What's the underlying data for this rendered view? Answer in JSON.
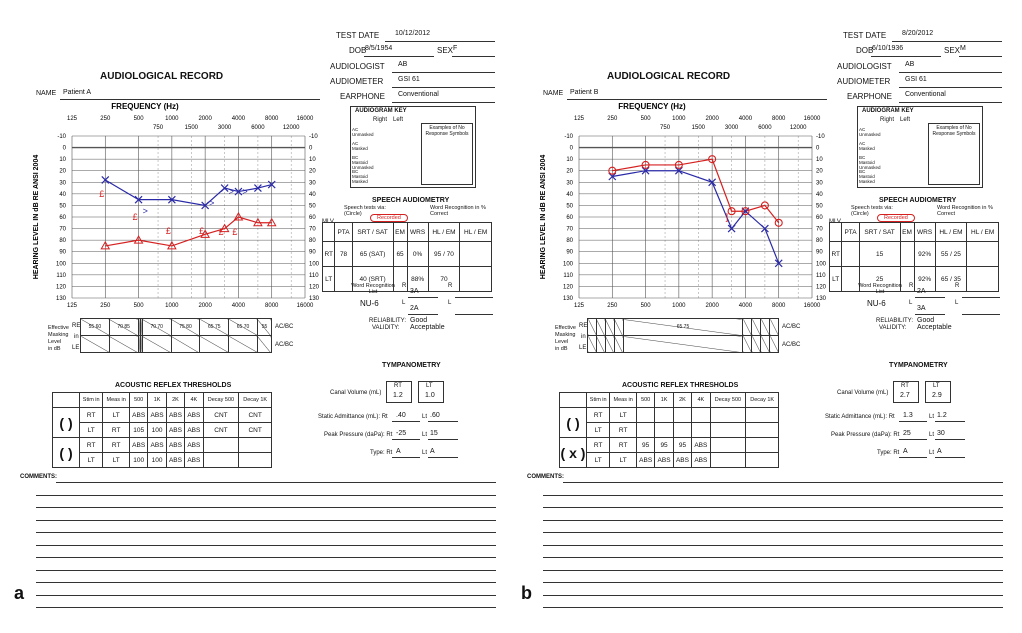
{
  "colors": {
    "right_ear": "#d62020",
    "left_ear": "#2a2aa8",
    "grid": "#555555"
  },
  "common": {
    "title": "AUDIOLOGICAL RECORD",
    "name_label": "NAME",
    "freq_label": "FREQUENCY (Hz)",
    "ylabel": "HEARING LEVEL IN dB RE ANSI 2004",
    "freq_top_main": [
      "125",
      "250",
      "500",
      "1000",
      "2000",
      "4000",
      "8000",
      "16000"
    ],
    "freq_top_inter": [
      "750",
      "1500",
      "3000",
      "6000",
      "12000"
    ],
    "freq_bottom": [
      "125",
      "250",
      "500",
      "1000",
      "2000",
      "4000",
      "8000",
      "16000"
    ],
    "db_ticks": [
      "-10",
      "0",
      "10",
      "20",
      "30",
      "40",
      "50",
      "60",
      "70",
      "80",
      "90",
      "100",
      "110",
      "120",
      "130"
    ],
    "test_date_label": "TEST DATE",
    "dob_label": "DOB",
    "sex_label": "SEX",
    "audiologist_label": "AUDIOLOGIST",
    "audiometer_label": "AUDIOMETER",
    "earphone_label": "EARPHONE",
    "key_title": "AUDIOGRAM KEY",
    "key_right": "Right",
    "key_left": "Left",
    "key_rows": [
      "AC Unmasked",
      "AC Masked",
      "BC Mastoid Unmasked",
      "BC Mastoid Masked"
    ],
    "key_examples": "Examples of No Response Symbols",
    "speech_title": "SPEECH AUDIOMETRY",
    "speech_tests_via": "Speech tests via: (Circle)",
    "recorded": "Recorded",
    "mlv": "MLV",
    "word_rec_pct": "Word Recognition in % Correct",
    "pta": "PTA",
    "srt": "SRT",
    "sat": "SAT",
    "em": "EM",
    "wrs": "WRS",
    "hl": "HL",
    "rt": "RT",
    "lt": "LT",
    "word_rec_list": "Word Recognition List",
    "r": "R",
    "l": "L",
    "reliability_label": "RELIABILITY:",
    "validity_label": "VALIDITY:",
    "masking_lines": [
      "Effective",
      "Masking",
      "Level",
      "in dB"
    ],
    "re": "RE",
    "in": "in",
    "le": "LE",
    "ac_bc": "AC/BC",
    "tymp_title": "TYMPANOMETRY",
    "canal_volume": "Canal Volume (mL)",
    "static_adm": "Static Admittance (mL): Rt",
    "peak_pressure": "Peak Pressure (daPa): Rt",
    "type_label": "Type: Rt",
    "lt_short": "Lt",
    "reflex_title": "ACOUSTIC REFLEX THRESHOLDS",
    "reflex_headers": [
      "Stim in",
      "Meas in",
      "500",
      "1K",
      "2K",
      "4K",
      "Decay 500",
      "Decay 1K"
    ],
    "ipsi": "IPSILATERAL",
    "contra": "CONTRA",
    "comments_label": "COMMENTS:"
  },
  "patients": [
    {
      "panel": "a",
      "name": "Patient A",
      "test_date": "10/12/2012",
      "dob": "8/5/1954",
      "sex": "F",
      "audiologist": "AB",
      "audiometer": "GSI 61",
      "earphone": "Conventional",
      "speech": {
        "pta": "78",
        "rt_srt": "65 (SAT)",
        "rt_em": "65",
        "rt_wrs": "0%",
        "rt_hl": "95",
        "rt_hl2": "70",
        "lt_srt": "40 (SRT)",
        "lt_wrs": "88%",
        "lt_hl": "70",
        "lt_hl2": "",
        "word_list_r": "3A",
        "word_list_l": "2A",
        "nu6": "NU-6"
      },
      "reliability": "Good",
      "validity": "Acceptable",
      "masking_re": [
        "55",
        "70",
        "",
        "",
        "70",
        "75",
        "65",
        "65",
        "55"
      ],
      "masking_re2": [
        "60",
        "85",
        "",
        "",
        "70",
        "80",
        "75",
        "70",
        ""
      ],
      "tymp": {
        "rt_vol": "1.2",
        "lt_vol": "1.0",
        "rt_adm": ".40",
        "lt_adm": ".60",
        "rt_pp": "-25",
        "lt_pp": "15",
        "rt_type": "A",
        "lt_type": "A"
      },
      "reflex_rows": [
        [
          "RT",
          "LT",
          "ABS",
          "ABS",
          "ABS",
          "ABS",
          "CNT",
          "CNT"
        ],
        [
          "LT",
          "RT",
          "105",
          "100",
          "ABS",
          "ABS",
          "CNT",
          "CNT"
        ],
        [
          "RT",
          "RT",
          "ABS",
          "ABS",
          "ABS",
          "ABS",
          "",
          ""
        ],
        [
          "LT",
          "LT",
          "100",
          "100",
          "ABS",
          "ABS",
          "",
          ""
        ]
      ],
      "contra_mark": "",
      "ipsi_mark": "",
      "chart_data": {
        "type": "line",
        "x": [
          250,
          500,
          1000,
          2000,
          3000,
          4000,
          6000,
          8000
        ],
        "series": [
          {
            "values": [
              null,
              null,
              null,
              null,
              null,
              null,
              null,
              null
            ],
            "ac_left": [
              28,
              45,
              45,
              50,
              35,
              38,
              35,
              32
            ]
          },
          {
            "ac_right": [
              85,
              80,
              85,
              75,
              70,
              60,
              65,
              65
            ]
          }
        ],
        "ac_left": [
          [
            250,
            28
          ],
          [
            500,
            45
          ],
          [
            1000,
            45
          ],
          [
            2000,
            50
          ],
          [
            3000,
            35
          ],
          [
            4000,
            38
          ],
          [
            6000,
            35
          ],
          [
            8000,
            32
          ]
        ],
        "ac_right": [
          [
            250,
            85
          ],
          [
            500,
            80
          ],
          [
            1000,
            85
          ],
          [
            2000,
            75
          ],
          [
            3000,
            70
          ],
          [
            4000,
            60
          ],
          [
            6000,
            65
          ],
          [
            8000,
            65
          ]
        ],
        "bc_left": [
          [
            500,
            55
          ],
          [
            2000,
            48
          ],
          [
            3000,
            38
          ],
          [
            4000,
            38
          ]
        ],
        "bc_right": [
          [
            250,
            40
          ],
          [
            500,
            60
          ],
          [
            1000,
            72
          ],
          [
            2000,
            72
          ],
          [
            3000,
            73
          ],
          [
            4000,
            73
          ]
        ],
        "ylim": [
          -10,
          130
        ]
      }
    },
    {
      "panel": "b",
      "name": "Patient B",
      "test_date": "8/20/2012",
      "dob": "6/10/1936",
      "sex": "M",
      "audiologist": "AB",
      "audiometer": "GSI 61",
      "earphone": "Conventional",
      "speech": {
        "pta": "",
        "rt_srt": "15",
        "rt_em": "",
        "rt_wrs": "92%",
        "rt_hl": "55",
        "rt_hl2": "25",
        "lt_srt": "25",
        "lt_wrs": "92%",
        "lt_hl": "65",
        "lt_hl2": "35",
        "word_list_r": "2A",
        "word_list_l": "3A",
        "nu6": "NU-6"
      },
      "reliability": "Good",
      "validity": "Acceptable",
      "masking_re": [
        "",
        "",
        "",
        "",
        "65",
        "",
        "",
        "",
        ""
      ],
      "masking_re2": [
        "",
        "",
        "",
        "",
        "75",
        "",
        "",
        "",
        ""
      ],
      "tymp": {
        "rt_vol": "2.7",
        "lt_vol": "2.9",
        "rt_adm": "1.3",
        "lt_adm": "1.2",
        "rt_pp": "25",
        "lt_pp": "30",
        "rt_type": "A",
        "lt_type": "A"
      },
      "reflex_rows": [
        [
          "RT",
          "LT",
          "",
          "",
          "",
          "",
          "",
          ""
        ],
        [
          "LT",
          "RT",
          "",
          "",
          "",
          "",
          "",
          ""
        ],
        [
          "RT",
          "RT",
          "95",
          "95",
          "95",
          "ABS",
          "",
          ""
        ],
        [
          "LT",
          "LT",
          "ABS",
          "ABS",
          "ABS",
          "ABS",
          "",
          ""
        ]
      ],
      "contra_mark": "",
      "ipsi_mark": "x",
      "chart_data": {
        "type": "line",
        "x": [
          250,
          500,
          1000,
          2000,
          3000,
          4000,
          6000,
          8000
        ],
        "ac_left": [
          [
            250,
            25
          ],
          [
            500,
            20
          ],
          [
            1000,
            20
          ],
          [
            2000,
            30
          ],
          [
            3000,
            70
          ],
          [
            4000,
            55
          ],
          [
            6000,
            70
          ],
          [
            8000,
            100
          ]
        ],
        "ac_right": [
          [
            250,
            20
          ],
          [
            500,
            15
          ],
          [
            1000,
            15
          ],
          [
            2000,
            10
          ],
          [
            3000,
            55
          ],
          [
            4000,
            55
          ],
          [
            6000,
            50
          ],
          [
            8000,
            65
          ]
        ],
        "bc_left": [],
        "bc_right": [
          [
            3000,
            60
          ]
        ],
        "ylim": [
          -10,
          130
        ]
      }
    }
  ],
  "panel_labels": [
    "a",
    "b"
  ]
}
